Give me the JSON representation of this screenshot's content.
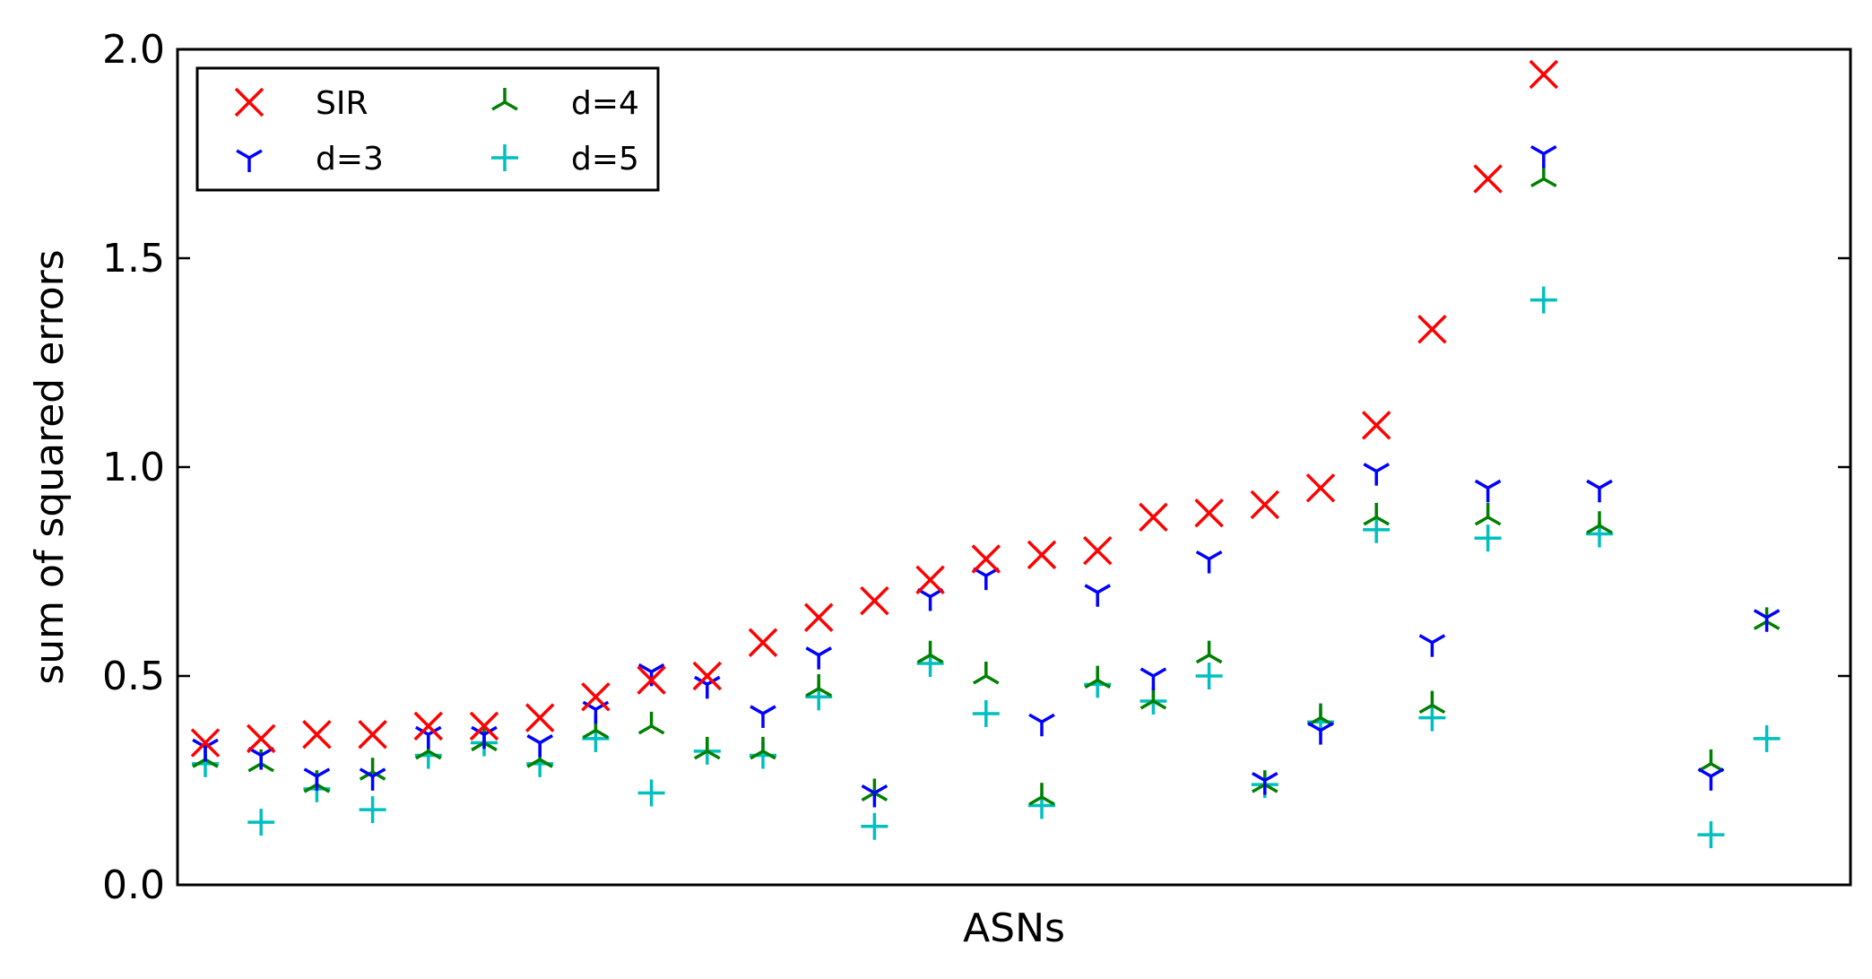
{
  "chart_data": {
    "type": "scatter",
    "title": "",
    "xlabel": "ASNs",
    "ylabel": "sum of squared errors",
    "ylim": [
      0.0,
      2.0
    ],
    "yticks": [
      "0.0",
      "0.5",
      "1.0",
      "1.5",
      "2.0"
    ],
    "xlim": [
      0,
      30
    ],
    "grid": false,
    "legend": {
      "placement": "top-left",
      "columns": 2
    },
    "x": [
      1,
      2,
      3,
      4,
      5,
      6,
      7,
      8,
      9,
      10,
      11,
      12,
      13,
      14,
      15,
      16,
      17,
      18,
      19,
      20,
      21,
      22,
      23,
      24,
      25,
      26,
      27,
      28,
      29,
      30
    ],
    "series": [
      {
        "name": "SIR",
        "marker": "x",
        "color": "#ff0000",
        "values": [
          0.34,
          0.35,
          0.36,
          0.36,
          0.38,
          0.38,
          0.4,
          0.45,
          0.49,
          0.5,
          0.58,
          0.64,
          0.68,
          0.73,
          0.78,
          0.79,
          0.8,
          0.88,
          0.89,
          0.91,
          0.95,
          1.1,
          1.33,
          1.69,
          1.94,
          null,
          null,
          null,
          null,
          null
        ]
      },
      {
        "name": "d=3",
        "marker": "tri_down",
        "color": "#0000ff",
        "values": [
          0.33,
          0.31,
          0.26,
          0.26,
          0.36,
          0.36,
          0.34,
          0.42,
          0.51,
          0.48,
          0.41,
          0.55,
          0.22,
          0.69,
          0.74,
          0.39,
          0.7,
          0.5,
          0.78,
          0.25,
          0.37,
          0.99,
          0.58,
          0.95,
          1.75,
          0.95,
          null,
          0.26,
          0.64,
          null
        ]
      },
      {
        "name": "d=4",
        "marker": "tri_up",
        "color": "#008000",
        "values": [
          0.3,
          0.29,
          0.24,
          0.27,
          0.32,
          0.34,
          0.3,
          0.37,
          0.38,
          0.32,
          0.32,
          0.47,
          0.22,
          0.55,
          0.5,
          0.21,
          0.49,
          0.44,
          0.55,
          0.24,
          0.4,
          0.88,
          0.43,
          0.88,
          1.69,
          0.86,
          null,
          0.29,
          0.63,
          null
        ]
      },
      {
        "name": "d=5",
        "marker": "plus",
        "color": "#00bfbf",
        "values": [
          0.29,
          0.15,
          0.23,
          0.18,
          0.31,
          0.34,
          0.29,
          0.35,
          0.22,
          0.32,
          0.31,
          0.45,
          0.14,
          0.53,
          0.41,
          0.19,
          0.48,
          0.44,
          0.5,
          0.24,
          0.39,
          0.85,
          0.4,
          0.83,
          1.4,
          0.84,
          null,
          0.12,
          0.35,
          null
        ]
      }
    ]
  }
}
